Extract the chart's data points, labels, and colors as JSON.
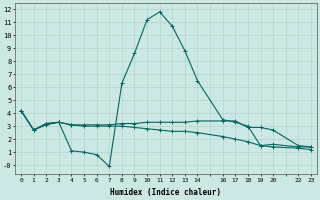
{
  "xlabel": "Humidex (Indice chaleur)",
  "bg_color": "#cce8e4",
  "grid_color": "#b0d4cc",
  "line_color": "#006860",
  "xlim": [
    -0.5,
    23.5
  ],
  "ylim": [
    -0.7,
    12.5
  ],
  "ytick_positions": [
    0,
    1,
    2,
    3,
    4,
    5,
    6,
    7,
    8,
    9,
    10,
    11,
    12
  ],
  "ytick_labels": [
    "-0",
    "1",
    "2",
    "3",
    "4",
    "5",
    "6",
    "7",
    "8",
    "9",
    "10",
    "11",
    "12"
  ],
  "xtick_positions": [
    0,
    1,
    2,
    3,
    4,
    5,
    6,
    7,
    8,
    9,
    10,
    11,
    12,
    13,
    14,
    15,
    16,
    17,
    18,
    19,
    20,
    21,
    22,
    23
  ],
  "xtick_show": [
    0,
    1,
    2,
    3,
    4,
    5,
    6,
    7,
    8,
    9,
    10,
    11,
    12,
    13,
    14,
    16,
    17,
    18,
    19,
    20,
    22,
    23
  ],
  "line1_x": [
    0,
    1,
    2,
    3,
    4,
    5,
    6,
    7,
    8,
    9,
    10,
    11,
    12,
    13,
    14,
    16,
    17,
    18,
    19,
    20,
    22,
    23
  ],
  "line1_y": [
    4.2,
    2.7,
    3.1,
    3.3,
    1.1,
    1.0,
    0.8,
    -0.1,
    6.3,
    8.6,
    11.2,
    11.8,
    10.7,
    8.8,
    6.5,
    3.5,
    3.3,
    3.0,
    1.5,
    1.6,
    1.4,
    1.4
  ],
  "line2_x": [
    0,
    1,
    2,
    3,
    4,
    5,
    6,
    7,
    8,
    9,
    10,
    11,
    12,
    13,
    14,
    16,
    17,
    18,
    19,
    20,
    22,
    23
  ],
  "line2_y": [
    4.2,
    2.7,
    3.2,
    3.3,
    3.1,
    3.1,
    3.1,
    3.1,
    3.2,
    3.2,
    3.3,
    3.3,
    3.3,
    3.3,
    3.4,
    3.4,
    3.4,
    2.9,
    2.9,
    2.7,
    1.5,
    1.4
  ],
  "line3_x": [
    0,
    1,
    2,
    3,
    4,
    5,
    6,
    7,
    8,
    9,
    10,
    11,
    12,
    13,
    14,
    16,
    17,
    18,
    19,
    20,
    22,
    23
  ],
  "line3_y": [
    4.2,
    2.7,
    3.2,
    3.3,
    3.1,
    3.0,
    3.0,
    3.0,
    3.0,
    2.9,
    2.8,
    2.7,
    2.6,
    2.6,
    2.5,
    2.2,
    2.0,
    1.8,
    1.5,
    1.4,
    1.3,
    1.2
  ]
}
